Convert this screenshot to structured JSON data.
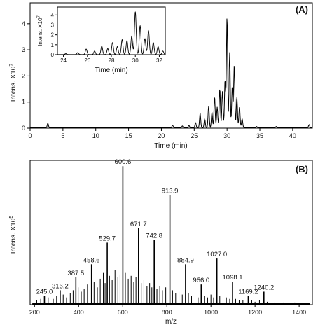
{
  "chart_data": [
    {
      "type": "line",
      "panel_label": "(A)",
      "xlabel": "Time (min)",
      "ylabel": "Intens. X10",
      "ylabel_exp": "7",
      "xlim": [
        0,
        43
      ],
      "ylim": [
        0,
        4.8
      ],
      "xticks": [
        "0",
        "5",
        "10",
        "15",
        "20",
        "25",
        "30",
        "35",
        "40"
      ],
      "yticks": [
        "0",
        "1",
        "2",
        "3",
        "4"
      ],
      "peaks": [
        {
          "x": 2.7,
          "y": 0.18
        },
        {
          "x": 21.7,
          "y": 0.1
        },
        {
          "x": 23.2,
          "y": 0.07
        },
        {
          "x": 24.2,
          "y": 0.09
        },
        {
          "x": 25.2,
          "y": 0.2
        },
        {
          "x": 25.9,
          "y": 0.55
        },
        {
          "x": 26.6,
          "y": 0.35
        },
        {
          "x": 27.2,
          "y": 0.85
        },
        {
          "x": 27.7,
          "y": 0.6
        },
        {
          "x": 28.1,
          "y": 1.2
        },
        {
          "x": 28.5,
          "y": 0.8
        },
        {
          "x": 28.9,
          "y": 1.5
        },
        {
          "x": 29.3,
          "y": 1.4
        },
        {
          "x": 29.7,
          "y": 1.85
        },
        {
          "x": 30.0,
          "y": 4.3
        },
        {
          "x": 30.4,
          "y": 2.9
        },
        {
          "x": 30.8,
          "y": 1.6
        },
        {
          "x": 31.1,
          "y": 2.4
        },
        {
          "x": 31.5,
          "y": 1.2
        },
        {
          "x": 31.9,
          "y": 0.8
        },
        {
          "x": 32.3,
          "y": 0.35
        },
        {
          "x": 34.5,
          "y": 0.05
        },
        {
          "x": 37.5,
          "y": 0.05
        },
        {
          "x": 42.5,
          "y": 0.12
        }
      ],
      "inset": {
        "xlabel": "Time (min)",
        "ylabel": "Intens. X10",
        "ylabel_exp": "7",
        "xlim": [
          23.5,
          32.5
        ],
        "ylim": [
          0,
          4.8
        ],
        "xticks": [
          "24",
          "26",
          "28",
          "30",
          "32"
        ],
        "yticks": [
          "0",
          "1",
          "2",
          "3",
          "4"
        ]
      }
    },
    {
      "type": "bar",
      "panel_label": "(B)",
      "xlabel": "m/z",
      "ylabel": "Intens. X10",
      "ylabel_exp": "5",
      "xlim": [
        180,
        1460
      ],
      "ylim": [
        0,
        100
      ],
      "xticks": [
        "200",
        "400",
        "600",
        "800",
        "1000",
        "1200",
        "1400"
      ],
      "labeled_peaks": [
        {
          "mz": 245.0,
          "rel": 6,
          "label": "245.0"
        },
        {
          "mz": 316.2,
          "rel": 10,
          "label": "316.2"
        },
        {
          "mz": 387.5,
          "rel": 19,
          "label": "387.5"
        },
        {
          "mz": 458.6,
          "rel": 28,
          "label": "458.6"
        },
        {
          "mz": 529.7,
          "rel": 43,
          "label": "529.7"
        },
        {
          "mz": 600.6,
          "rel": 96,
          "label": "600.6"
        },
        {
          "mz": 671.7,
          "rel": 53,
          "label": "671.7"
        },
        {
          "mz": 742.8,
          "rel": 45,
          "label": "742.8"
        },
        {
          "mz": 813.9,
          "rel": 76,
          "label": "813.9"
        },
        {
          "mz": 884.9,
          "rel": 28,
          "label": "884.9"
        },
        {
          "mz": 956.0,
          "rel": 14,
          "label": "956.0"
        },
        {
          "mz": 1027.0,
          "rel": 32,
          "label": "1027.0"
        },
        {
          "mz": 1098.1,
          "rel": 16,
          "label": "1098.1"
        },
        {
          "mz": 1169.2,
          "rel": 6,
          "label": "1169.2"
        },
        {
          "mz": 1240.2,
          "rel": 9,
          "label": "1240.2"
        }
      ],
      "minor_peaks": [
        {
          "mz": 210,
          "rel": 3
        },
        {
          "mz": 228,
          "rel": 4
        },
        {
          "mz": 262,
          "rel": 5
        },
        {
          "mz": 285,
          "rel": 4
        },
        {
          "mz": 300,
          "rel": 6
        },
        {
          "mz": 330,
          "rel": 7
        },
        {
          "mz": 345,
          "rel": 5
        },
        {
          "mz": 362,
          "rel": 8
        },
        {
          "mz": 375,
          "rel": 10
        },
        {
          "mz": 398,
          "rel": 12
        },
        {
          "mz": 412,
          "rel": 9
        },
        {
          "mz": 425,
          "rel": 11
        },
        {
          "mz": 440,
          "rel": 14
        },
        {
          "mz": 470,
          "rel": 16
        },
        {
          "mz": 485,
          "rel": 12
        },
        {
          "mz": 498,
          "rel": 18
        },
        {
          "mz": 512,
          "rel": 22
        },
        {
          "mz": 520,
          "rel": 15
        },
        {
          "mz": 540,
          "rel": 20
        },
        {
          "mz": 552,
          "rel": 17
        },
        {
          "mz": 565,
          "rel": 24
        },
        {
          "mz": 578,
          "rel": 19
        },
        {
          "mz": 588,
          "rel": 21
        },
        {
          "mz": 612,
          "rel": 22
        },
        {
          "mz": 625,
          "rel": 18
        },
        {
          "mz": 638,
          "rel": 20
        },
        {
          "mz": 650,
          "rel": 16
        },
        {
          "mz": 660,
          "rel": 19
        },
        {
          "mz": 684,
          "rel": 15
        },
        {
          "mz": 696,
          "rel": 17
        },
        {
          "mz": 710,
          "rel": 13
        },
        {
          "mz": 722,
          "rel": 15
        },
        {
          "mz": 732,
          "rel": 12
        },
        {
          "mz": 755,
          "rel": 11
        },
        {
          "mz": 768,
          "rel": 13
        },
        {
          "mz": 780,
          "rel": 10
        },
        {
          "mz": 795,
          "rel": 12
        },
        {
          "mz": 826,
          "rel": 10
        },
        {
          "mz": 840,
          "rel": 8
        },
        {
          "mz": 855,
          "rel": 9
        },
        {
          "mz": 870,
          "rel": 7
        },
        {
          "mz": 898,
          "rel": 8
        },
        {
          "mz": 912,
          "rel": 6
        },
        {
          "mz": 928,
          "rel": 7
        },
        {
          "mz": 942,
          "rel": 5
        },
        {
          "mz": 970,
          "rel": 6
        },
        {
          "mz": 985,
          "rel": 5
        },
        {
          "mz": 1000,
          "rel": 7
        },
        {
          "mz": 1012,
          "rel": 5
        },
        {
          "mz": 1040,
          "rel": 6
        },
        {
          "mz": 1055,
          "rel": 4
        },
        {
          "mz": 1070,
          "rel": 5
        },
        {
          "mz": 1085,
          "rel": 4
        },
        {
          "mz": 1112,
          "rel": 4
        },
        {
          "mz": 1128,
          "rel": 3
        },
        {
          "mz": 1145,
          "rel": 3
        },
        {
          "mz": 1185,
          "rel": 3
        },
        {
          "mz": 1200,
          "rel": 2
        },
        {
          "mz": 1220,
          "rel": 3
        },
        {
          "mz": 1255,
          "rel": 2
        },
        {
          "mz": 1290,
          "rel": 2
        },
        {
          "mz": 1330,
          "rel": 1.5
        },
        {
          "mz": 1380,
          "rel": 1.5
        },
        {
          "mz": 1420,
          "rel": 1
        }
      ]
    }
  ]
}
